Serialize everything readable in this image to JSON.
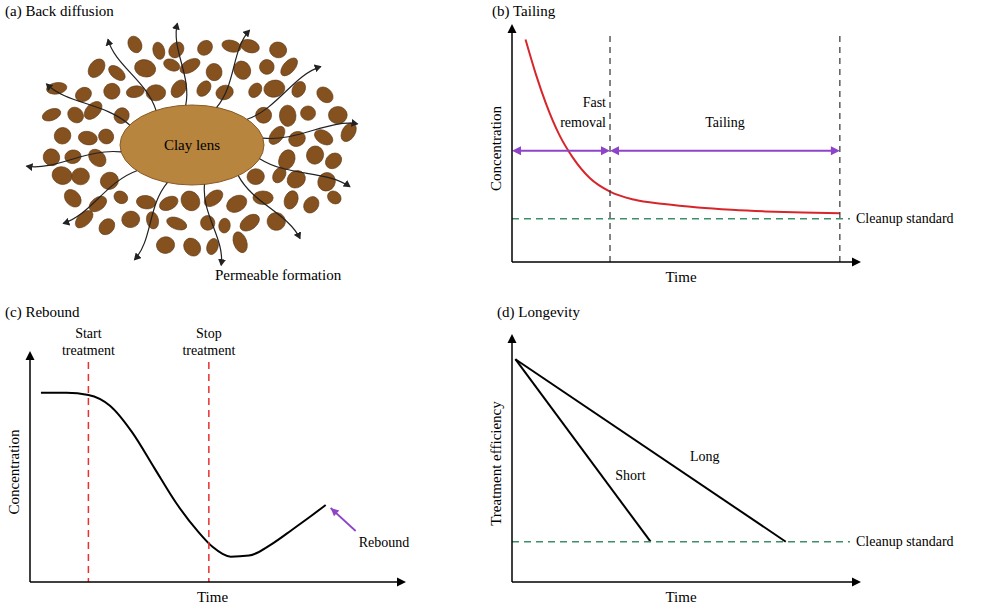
{
  "diagram": {
    "title": "(a) Back diffusion",
    "lens_label": "Clay lens",
    "formation_label": "Permeable formation",
    "lens_color": "#b8853f",
    "grain_color": "#85511f"
  },
  "chart_data": [
    {
      "type": "line",
      "title": "(b) Tailing",
      "x_label": "Time",
      "y_label": "Concentration",
      "xlim": [
        0,
        10
      ],
      "ylim": [
        0,
        10
      ],
      "tick_labels": false,
      "color": "#d7262b",
      "line_style": "solid",
      "marker": "none",
      "x": [
        0.4,
        0.7,
        1.0,
        1.4,
        1.8,
        2.3,
        2.9,
        3.6,
        4.5,
        5.5,
        6.5,
        7.5,
        8.6,
        9.7
      ],
      "values": [
        9.8,
        8.3,
        7.0,
        5.6,
        4.6,
        3.7,
        3.1,
        2.75,
        2.55,
        2.4,
        2.3,
        2.23,
        2.18,
        2.15
      ],
      "phases": [
        {
          "label": "Fast removal",
          "start": 0,
          "end": 2.9,
          "color": "#8e44c8"
        },
        {
          "label": "Tailing",
          "start": 2.9,
          "end": 9.7,
          "color": "#8e44c8"
        }
      ],
      "cleanup_standard": {
        "label": "Cleanup standard",
        "value": 1.9,
        "color": "#3d8f6a",
        "line_style": "dashed"
      }
    },
    {
      "type": "line",
      "title": "(c) Rebound",
      "x_label": "Time",
      "y_label": "Concentration",
      "xlim": [
        0,
        10
      ],
      "ylim": [
        0,
        10
      ],
      "tick_labels": false,
      "color": "#000000",
      "line_style": "solid",
      "marker": "none",
      "x": [
        0.3,
        1.0,
        1.6,
        2.2,
        2.8,
        3.4,
        4.0,
        4.6,
        5.0,
        5.5,
        6.0,
        6.6,
        7.2,
        7.7,
        8.1
      ],
      "values": [
        8.6,
        8.6,
        8.5,
        8.0,
        6.8,
        5.2,
        3.6,
        2.3,
        1.6,
        1.15,
        1.2,
        1.7,
        2.4,
        3.0,
        3.5
      ],
      "markers": [
        {
          "label": "Start treatment",
          "x": 1.6,
          "color": "#e8302e",
          "line_style": "dashed"
        },
        {
          "label": "Stop treatment",
          "x": 4.9,
          "color": "#e8302e",
          "line_style": "dashed"
        }
      ],
      "annotation": {
        "text": "Rebound",
        "color": "#8e44c8"
      }
    },
    {
      "type": "line",
      "title": "(d) Longevity",
      "x_label": "Time",
      "y_label": "Treatment efficiency",
      "xlim": [
        0,
        10
      ],
      "ylim": [
        0,
        10
      ],
      "tick_labels": false,
      "marker": "none",
      "series": [
        {
          "name": "Short",
          "color": "#000000",
          "line_style": "solid",
          "x": [
            0.1,
            4.1
          ],
          "values": [
            9.4,
            1.7
          ]
        },
        {
          "name": "Long",
          "color": "#000000",
          "line_style": "solid",
          "x": [
            0.1,
            8.1
          ],
          "values": [
            9.4,
            1.7
          ]
        }
      ],
      "cleanup_standard": {
        "label": "Cleanup standard",
        "value": 1.7,
        "color": "#3d8f6a",
        "line_style": "dashed"
      }
    }
  ]
}
